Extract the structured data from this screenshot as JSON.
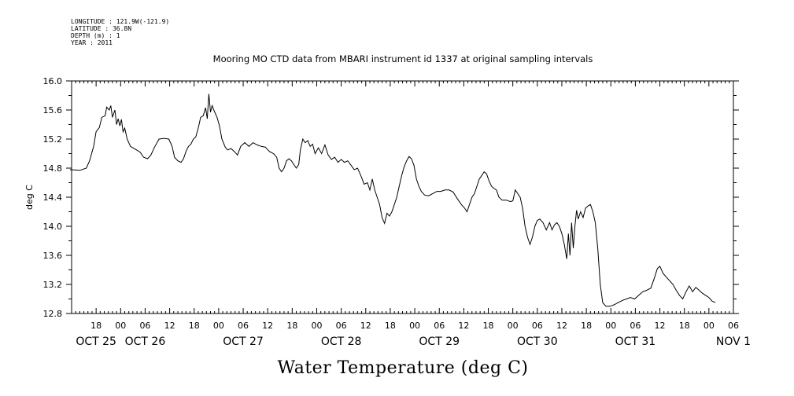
{
  "header": {
    "longitude": "LONGITUDE : 121.9W(-121.9)",
    "latitude": "LATITUDE : 36.8N",
    "depth": "DEPTH (m) : 1",
    "year": "YEAR : 2011"
  },
  "chart_data": {
    "type": "line",
    "title": "Mooring MO CTD data from MBARI instrument id 1337 at original sampling intervals",
    "xlabel": "Water Temperature (deg C)",
    "ylabel": "deg C",
    "ylim": [
      12.8,
      16.0
    ],
    "yticks": [
      "16.0",
      "15.6",
      "15.2",
      "14.8",
      "14.4",
      "14.0",
      "13.6",
      "13.2",
      "12.8"
    ],
    "x_unit": "hours from OCT 25 00:00, 2011",
    "xlim": [
      -32,
      130
    ],
    "hour_ticks": [
      {
        "h": -26,
        "label": "18"
      },
      {
        "h": -20,
        "label": "00"
      },
      {
        "h": -14,
        "label": "06"
      },
      {
        "h": -8,
        "label": "12"
      },
      {
        "h": -2,
        "label": "18"
      },
      {
        "h": 4,
        "label": "00"
      },
      {
        "h": 10,
        "label": "06"
      },
      {
        "h": 16,
        "label": "12"
      },
      {
        "h": 22,
        "label": "18"
      },
      {
        "h": 28,
        "label": "00"
      },
      {
        "h": 34,
        "label": "06"
      },
      {
        "h": 40,
        "label": "12"
      },
      {
        "h": 46,
        "label": "18"
      },
      {
        "h": 52,
        "label": "00"
      },
      {
        "h": 58,
        "label": "06"
      },
      {
        "h": 64,
        "label": "12"
      },
      {
        "h": 70,
        "label": "18"
      },
      {
        "h": 76,
        "label": "00"
      },
      {
        "h": 82,
        "label": "06"
      },
      {
        "h": 88,
        "label": "12"
      },
      {
        "h": 94,
        "label": "18"
      },
      {
        "h": 100,
        "label": "00"
      },
      {
        "h": 106,
        "label": "06"
      },
      {
        "h": 112,
        "label": "12"
      },
      {
        "h": 118,
        "label": "18"
      },
      {
        "h": 124,
        "label": "00"
      },
      {
        "h": 130,
        "label": "06"
      },
      {
        "h": 136,
        "label": "12"
      }
    ],
    "date_labels": [
      {
        "h": -26,
        "label": "OCT 25"
      },
      {
        "h": -14,
        "label": "OCT 26"
      },
      {
        "h": 10,
        "label": "OCT 27"
      },
      {
        "h": 34,
        "label": "OCT 28"
      },
      {
        "h": 58,
        "label": "OCT 29"
      },
      {
        "h": 82,
        "label": "OCT 30"
      },
      {
        "h": 106,
        "label": "OCT 31"
      },
      {
        "h": 130,
        "label": "NOV  1"
      }
    ],
    "grid": false,
    "series": [
      {
        "values": [
          [
            -32.4,
            14.78
          ],
          [
            -30.0,
            14.77
          ],
          [
            -28.4,
            14.8
          ],
          [
            -27.6,
            14.9
          ],
          [
            -26.6,
            15.1
          ],
          [
            -26.0,
            15.3
          ],
          [
            -25.2,
            15.36
          ],
          [
            -24.6,
            15.5
          ],
          [
            -23.8,
            15.52
          ],
          [
            -23.4,
            15.64
          ],
          [
            -22.8,
            15.6
          ],
          [
            -22.4,
            15.66
          ],
          [
            -22.0,
            15.5
          ],
          [
            -21.4,
            15.6
          ],
          [
            -21.0,
            15.4
          ],
          [
            -20.6,
            15.48
          ],
          [
            -20.2,
            15.38
          ],
          [
            -19.8,
            15.47
          ],
          [
            -19.4,
            15.3
          ],
          [
            -19.0,
            15.35
          ],
          [
            -18.4,
            15.2
          ],
          [
            -17.6,
            15.1
          ],
          [
            -16.4,
            15.06
          ],
          [
            -15.2,
            15.02
          ],
          [
            -14.4,
            14.95
          ],
          [
            -13.4,
            14.93
          ],
          [
            -12.6,
            14.98
          ],
          [
            -11.6,
            15.1
          ],
          [
            -10.6,
            15.2
          ],
          [
            -9.4,
            15.21
          ],
          [
            -8.2,
            15.2
          ],
          [
            -7.4,
            15.1
          ],
          [
            -6.8,
            14.95
          ],
          [
            -6.0,
            14.9
          ],
          [
            -5.2,
            14.88
          ],
          [
            -4.6,
            14.93
          ],
          [
            -4.0,
            15.03
          ],
          [
            -3.4,
            15.1
          ],
          [
            -2.8,
            15.13
          ],
          [
            -2.2,
            15.2
          ],
          [
            -1.6,
            15.23
          ],
          [
            -1.0,
            15.35
          ],
          [
            -0.4,
            15.5
          ],
          [
            0.2,
            15.52
          ],
          [
            0.8,
            15.63
          ],
          [
            1.2,
            15.48
          ],
          [
            1.6,
            15.82
          ],
          [
            2.0,
            15.57
          ],
          [
            2.4,
            15.66
          ],
          [
            2.8,
            15.6
          ],
          [
            3.2,
            15.55
          ],
          [
            3.6,
            15.5
          ],
          [
            4.2,
            15.38
          ],
          [
            4.8,
            15.2
          ],
          [
            5.6,
            15.09
          ],
          [
            6.2,
            15.05
          ],
          [
            7.0,
            15.07
          ],
          [
            7.8,
            15.03
          ],
          [
            8.6,
            14.98
          ],
          [
            9.4,
            15.1
          ],
          [
            10.4,
            15.15
          ],
          [
            11.4,
            15.1
          ],
          [
            12.4,
            15.15
          ],
          [
            13.4,
            15.12
          ],
          [
            14.4,
            15.1
          ],
          [
            15.4,
            15.09
          ],
          [
            16.4,
            15.03
          ],
          [
            17.4,
            15.0
          ],
          [
            18.2,
            14.95
          ],
          [
            18.8,
            14.8
          ],
          [
            19.4,
            14.75
          ],
          [
            20.0,
            14.8
          ],
          [
            20.6,
            14.9
          ],
          [
            21.2,
            14.93
          ],
          [
            21.8,
            14.9
          ],
          [
            22.4,
            14.85
          ],
          [
            23.0,
            14.8
          ],
          [
            23.6,
            14.85
          ],
          [
            24.0,
            15.05
          ],
          [
            24.6,
            15.2
          ],
          [
            25.2,
            15.15
          ],
          [
            25.8,
            15.18
          ],
          [
            26.4,
            15.1
          ],
          [
            27.0,
            15.13
          ],
          [
            27.6,
            15.0
          ],
          [
            28.4,
            15.08
          ],
          [
            29.2,
            15.0
          ],
          [
            30.0,
            15.12
          ],
          [
            30.8,
            14.98
          ],
          [
            31.6,
            14.92
          ],
          [
            32.4,
            14.95
          ],
          [
            33.2,
            14.88
          ],
          [
            34.0,
            14.92
          ],
          [
            34.8,
            14.88
          ],
          [
            35.6,
            14.9
          ],
          [
            36.4,
            14.84
          ],
          [
            37.2,
            14.78
          ],
          [
            38.0,
            14.8
          ],
          [
            38.8,
            14.7
          ],
          [
            39.6,
            14.58
          ],
          [
            40.4,
            14.6
          ],
          [
            41.0,
            14.5
          ],
          [
            41.6,
            14.65
          ],
          [
            42.2,
            14.5
          ],
          [
            42.8,
            14.4
          ],
          [
            43.4,
            14.3
          ],
          [
            44.0,
            14.12
          ],
          [
            44.6,
            14.04
          ],
          [
            45.2,
            14.18
          ],
          [
            45.8,
            14.14
          ],
          [
            46.4,
            14.2
          ],
          [
            47.0,
            14.3
          ],
          [
            47.6,
            14.4
          ],
          [
            48.2,
            14.55
          ],
          [
            48.8,
            14.7
          ],
          [
            49.4,
            14.82
          ],
          [
            50.0,
            14.9
          ],
          [
            50.6,
            14.96
          ],
          [
            51.2,
            14.93
          ],
          [
            51.8,
            14.84
          ],
          [
            52.4,
            14.65
          ],
          [
            53.0,
            14.55
          ],
          [
            53.6,
            14.48
          ],
          [
            54.4,
            14.43
          ],
          [
            55.4,
            14.42
          ],
          [
            56.4,
            14.45
          ],
          [
            57.4,
            14.48
          ],
          [
            58.4,
            14.48
          ],
          [
            59.4,
            14.5
          ],
          [
            60.4,
            14.5
          ],
          [
            61.4,
            14.47
          ],
          [
            62.4,
            14.38
          ],
          [
            63.4,
            14.3
          ],
          [
            64.2,
            14.25
          ],
          [
            64.8,
            14.2
          ],
          [
            65.4,
            14.3
          ],
          [
            66.0,
            14.4
          ],
          [
            66.6,
            14.45
          ],
          [
            67.2,
            14.55
          ],
          [
            67.8,
            14.65
          ],
          [
            68.4,
            14.7
          ],
          [
            69.0,
            14.75
          ],
          [
            69.6,
            14.72
          ],
          [
            70.2,
            14.62
          ],
          [
            70.8,
            14.55
          ],
          [
            71.4,
            14.52
          ],
          [
            72.0,
            14.5
          ],
          [
            72.6,
            14.4
          ],
          [
            73.4,
            14.36
          ],
          [
            74.4,
            14.36
          ],
          [
            75.4,
            14.34
          ],
          [
            76.0,
            14.35
          ],
          [
            76.6,
            14.5
          ],
          [
            77.2,
            14.45
          ],
          [
            77.8,
            14.4
          ],
          [
            78.4,
            14.25
          ],
          [
            79.0,
            14.0
          ],
          [
            79.6,
            13.85
          ],
          [
            80.2,
            13.75
          ],
          [
            80.8,
            13.85
          ],
          [
            81.4,
            14.0
          ],
          [
            82.0,
            14.08
          ],
          [
            82.6,
            14.1
          ],
          [
            83.4,
            14.05
          ],
          [
            84.2,
            13.95
          ],
          [
            85.0,
            14.05
          ],
          [
            85.6,
            13.95
          ],
          [
            86.2,
            14.02
          ],
          [
            86.8,
            14.05
          ],
          [
            87.4,
            14.0
          ],
          [
            88.0,
            13.9
          ],
          [
            88.6,
            13.75
          ],
          [
            89.2,
            13.55
          ],
          [
            89.6,
            13.9
          ],
          [
            90.0,
            13.6
          ],
          [
            90.4,
            14.05
          ],
          [
            90.8,
            13.7
          ],
          [
            91.2,
            14.0
          ],
          [
            91.6,
            14.22
          ],
          [
            92.0,
            14.1
          ],
          [
            92.6,
            14.2
          ],
          [
            93.2,
            14.12
          ],
          [
            93.8,
            14.25
          ],
          [
            94.4,
            14.28
          ],
          [
            95.0,
            14.3
          ],
          [
            95.6,
            14.2
          ],
          [
            96.2,
            14.05
          ],
          [
            96.8,
            13.7
          ],
          [
            97.4,
            13.2
          ],
          [
            98.0,
            12.95
          ],
          [
            98.8,
            12.9
          ],
          [
            99.8,
            12.9
          ],
          [
            100.8,
            12.92
          ],
          [
            101.8,
            12.95
          ],
          [
            102.8,
            12.98
          ],
          [
            103.8,
            13.0
          ],
          [
            104.8,
            13.02
          ],
          [
            105.8,
            13.0
          ],
          [
            106.8,
            13.05
          ],
          [
            107.8,
            13.1
          ],
          [
            108.8,
            13.12
          ],
          [
            109.8,
            13.15
          ],
          [
            110.6,
            13.28
          ],
          [
            111.4,
            13.42
          ],
          [
            112.0,
            13.45
          ],
          [
            112.8,
            13.35
          ],
          [
            113.6,
            13.3
          ],
          [
            114.4,
            13.25
          ],
          [
            115.2,
            13.2
          ],
          [
            116.0,
            13.12
          ],
          [
            116.8,
            13.05
          ],
          [
            117.6,
            13.0
          ],
          [
            118.4,
            13.1
          ],
          [
            119.2,
            13.18
          ],
          [
            120.0,
            13.1
          ],
          [
            120.8,
            13.16
          ],
          [
            121.6,
            13.12
          ],
          [
            122.4,
            13.08
          ],
          [
            123.2,
            13.05
          ],
          [
            124.0,
            13.02
          ],
          [
            124.8,
            12.97
          ],
          [
            125.6,
            12.95
          ]
        ]
      }
    ]
  }
}
